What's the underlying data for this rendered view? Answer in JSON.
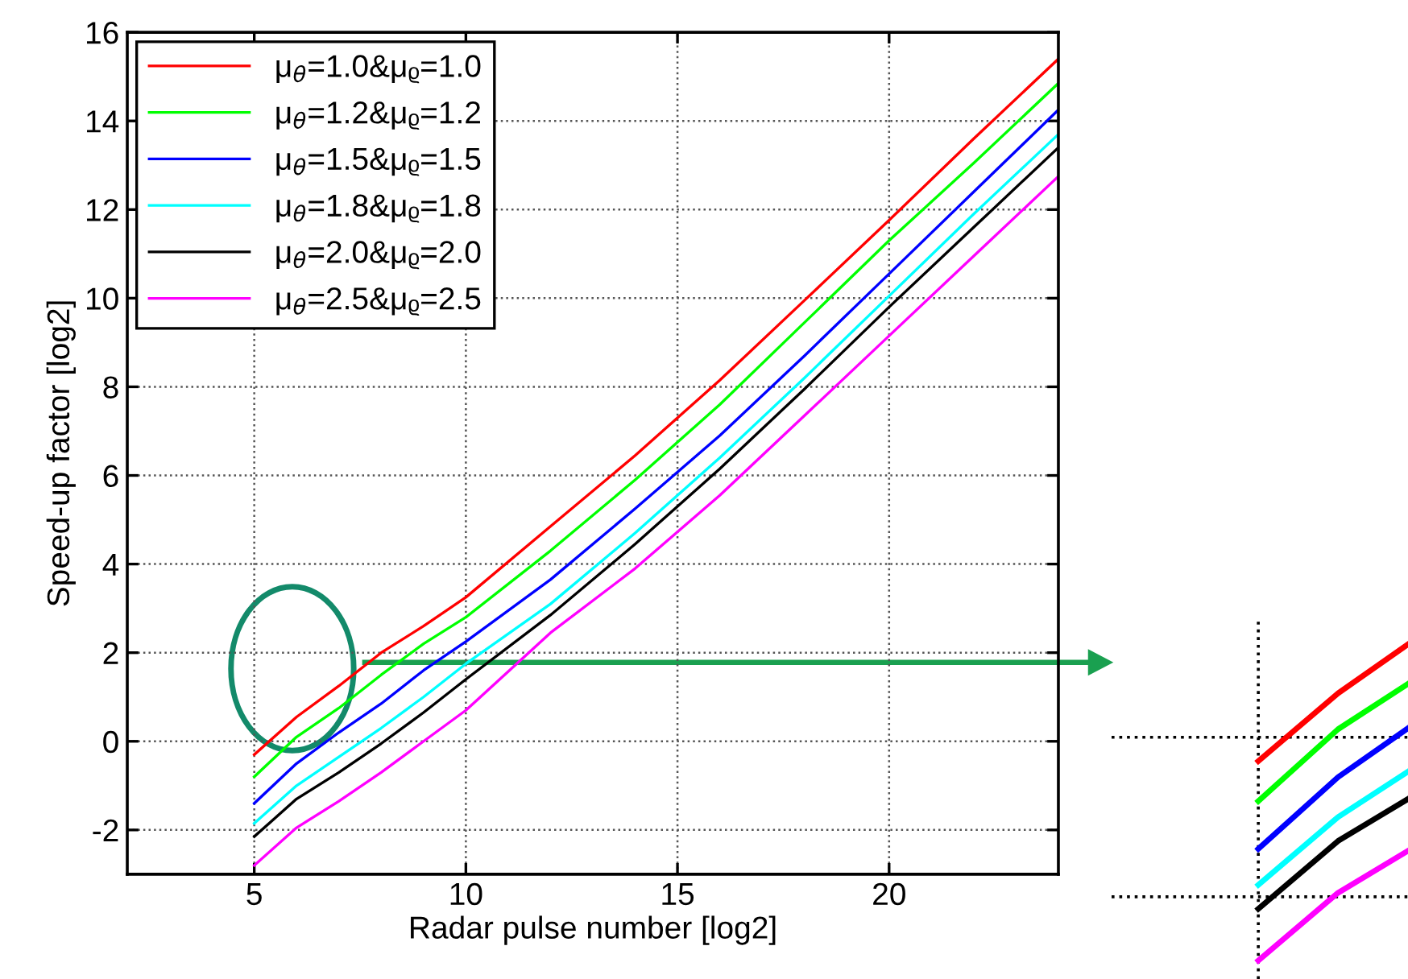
{
  "chart_data": {
    "type": "line",
    "xlabel": "Radar pulse number [log2]",
    "ylabel": "Speed-up factor [log2]",
    "x": [
      5,
      6,
      7,
      8,
      9,
      10,
      12,
      14,
      16,
      18,
      20,
      22,
      24
    ],
    "xlim": [
      2,
      24
    ],
    "xticks": [
      5,
      10,
      15,
      20
    ],
    "ylim": [
      -3,
      16
    ],
    "yticks": [
      -2,
      0,
      2,
      4,
      6,
      8,
      10,
      12,
      14,
      16
    ],
    "grid": true,
    "legend": "top left",
    "marker": "none",
    "line_style": "solid",
    "series": [
      {
        "name": "μ$_{θ}$=1.0&μᵨ=1.0",
        "color": "#ff0000",
        "values": [
          -0.3,
          0.55,
          1.25,
          2.0,
          2.6,
          3.25,
          4.85,
          6.45,
          8.15,
          9.95,
          11.76,
          13.6,
          15.4
        ]
      },
      {
        "name": "μ$_{θ}$=1.2&μᵨ=1.2",
        "color": "#00ff00",
        "values": [
          -0.8,
          0.1,
          0.75,
          1.5,
          2.2,
          2.8,
          4.3,
          5.9,
          7.6,
          9.45,
          11.3,
          13.05,
          14.85
        ]
      },
      {
        "name": "μ$_{θ}$=1.5&μᵨ=1.5",
        "color": "#0000ff",
        "values": [
          -1.4,
          -0.5,
          0.2,
          0.85,
          1.6,
          2.25,
          3.65,
          5.25,
          6.9,
          8.7,
          10.55,
          12.4,
          14.25
        ]
      },
      {
        "name": "μ$_{θ}$=1.8&μᵨ=1.8",
        "color": "#00ffff",
        "values": [
          -1.85,
          -1.0,
          -0.35,
          0.3,
          1.0,
          1.75,
          3.1,
          4.7,
          6.4,
          8.2,
          10.05,
          11.9,
          13.7
        ]
      },
      {
        "name": "μ$_{θ}$=2.0&μᵨ=2.0",
        "color": "#000000",
        "values": [
          -2.15,
          -1.3,
          -0.7,
          -0.05,
          0.65,
          1.4,
          2.85,
          4.45,
          6.15,
          7.95,
          9.8,
          11.6,
          13.4
        ]
      },
      {
        "name": "μ$_{θ}$=2.5&μᵨ=2.5",
        "color": "#ff00ff",
        "values": [
          -2.8,
          -1.95,
          -1.35,
          -0.7,
          0.0,
          0.7,
          2.45,
          3.9,
          5.55,
          7.35,
          9.15,
          10.95,
          12.75
        ]
      }
    ]
  }
}
